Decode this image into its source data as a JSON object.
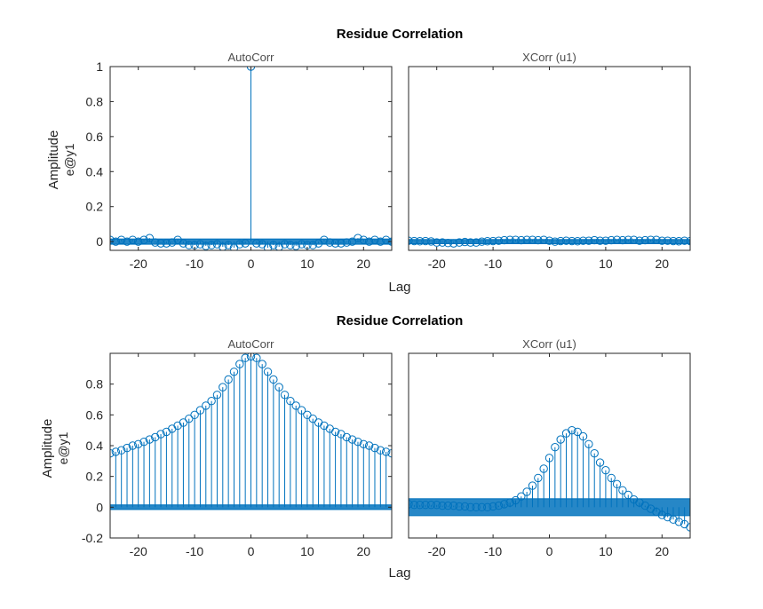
{
  "figure": {
    "rows": [
      {
        "title": "Residue Correlation",
        "ylabel": "Amplitude",
        "ylabel_sub": "e@y1",
        "xlabel": "Lag"
      },
      {
        "title": "Residue Correlation",
        "ylabel": "Amplitude",
        "ylabel_sub": "e@y1",
        "xlabel": "Lag"
      }
    ]
  },
  "colors": {
    "stem": "#0072BD",
    "band": "#0072BD",
    "axis": "#262626",
    "title": "#4d4d4d"
  },
  "chart_data": [
    {
      "type": "stem",
      "title": "AutoCorr",
      "xlim": [
        -25,
        25
      ],
      "ylim": [
        -0.05,
        1
      ],
      "xticks": [
        -20,
        -10,
        0,
        10,
        20
      ],
      "yticks": [
        0,
        0.2,
        0.4,
        0.6,
        0.8,
        1
      ],
      "yticklabels": [
        "0",
        "0.2",
        "0.4",
        "0.6",
        "0.8",
        "1"
      ],
      "confidence_band": [
        -0.015,
        0.015
      ],
      "x": [
        -25,
        -24,
        -23,
        -22,
        -21,
        -20,
        -19,
        -18,
        -17,
        -16,
        -15,
        -14,
        -13,
        -12,
        -11,
        -10,
        -9,
        -8,
        -7,
        -6,
        -5,
        -4,
        -3,
        -2,
        -1,
        0,
        1,
        2,
        3,
        4,
        5,
        6,
        7,
        8,
        9,
        10,
        11,
        12,
        13,
        14,
        15,
        16,
        17,
        18,
        19,
        20,
        21,
        22,
        23,
        24,
        25
      ],
      "y": [
        0.01,
        0.0,
        0.01,
        0.0,
        0.01,
        0.0,
        0.01,
        0.02,
        -0.005,
        -0.01,
        -0.01,
        -0.005,
        0.01,
        -0.01,
        -0.02,
        -0.02,
        -0.015,
        -0.025,
        -0.02,
        -0.015,
        -0.03,
        -0.02,
        -0.035,
        -0.015,
        -0.01,
        1.0,
        -0.01,
        -0.015,
        -0.035,
        -0.02,
        -0.03,
        -0.015,
        -0.02,
        -0.025,
        -0.015,
        -0.02,
        -0.02,
        -0.01,
        0.01,
        -0.005,
        -0.01,
        -0.01,
        -0.005,
        0.0,
        0.02,
        0.01,
        0.0,
        0.01,
        0.0,
        0.01,
        0.0
      ]
    },
    {
      "type": "stem",
      "title": "XCorr (u1)",
      "xlim": [
        -25,
        25
      ],
      "ylim": [
        -0.05,
        1
      ],
      "xticks": [
        -20,
        -10,
        0,
        10,
        20
      ],
      "yticks": [],
      "yticklabels": [],
      "confidence_band": [
        -0.012,
        0.012
      ],
      "x": [
        -25,
        -24,
        -23,
        -22,
        -21,
        -20,
        -19,
        -18,
        -17,
        -16,
        -15,
        -14,
        -13,
        -12,
        -11,
        -10,
        -9,
        -8,
        -7,
        -6,
        -5,
        -4,
        -3,
        -2,
        -1,
        0,
        1,
        2,
        3,
        4,
        5,
        6,
        7,
        8,
        9,
        10,
        11,
        12,
        13,
        14,
        15,
        16,
        17,
        18,
        19,
        20,
        21,
        22,
        23,
        24,
        25
      ],
      "y": [
        0.005,
        0.003,
        0.002,
        0.003,
        0.001,
        -0.005,
        -0.005,
        -0.008,
        -0.01,
        -0.005,
        -0.002,
        -0.005,
        -0.005,
        0.0,
        0.002,
        0.003,
        0.005,
        0.008,
        0.01,
        0.01,
        0.008,
        0.01,
        0.01,
        0.008,
        0.01,
        0.005,
        0.0,
        0.003,
        0.005,
        0.003,
        0.002,
        0.005,
        0.005,
        0.008,
        0.005,
        0.005,
        0.008,
        0.01,
        0.008,
        0.01,
        0.01,
        0.005,
        0.008,
        0.01,
        0.01,
        0.005,
        0.005,
        0.003,
        0.002,
        0.005,
        0.003
      ]
    },
    {
      "type": "stem",
      "title": "AutoCorr",
      "xlim": [
        -25,
        25
      ],
      "ylim": [
        -0.2,
        1
      ],
      "xticks": [
        -20,
        -10,
        0,
        10,
        20
      ],
      "yticks": [
        -0.2,
        0,
        0.2,
        0.4,
        0.6,
        0.8
      ],
      "yticklabels": [
        "-0.2",
        "0",
        "0.2",
        "0.4",
        "0.6",
        "0.8"
      ],
      "confidence_band": [
        -0.015,
        0.015
      ],
      "x": [
        -25,
        -24,
        -23,
        -22,
        -21,
        -20,
        -19,
        -18,
        -17,
        -16,
        -15,
        -14,
        -13,
        -12,
        -11,
        -10,
        -9,
        -8,
        -7,
        -6,
        -5,
        -4,
        -3,
        -2,
        -1,
        0,
        1,
        2,
        3,
        4,
        5,
        6,
        7,
        8,
        9,
        10,
        11,
        12,
        13,
        14,
        15,
        16,
        17,
        18,
        19,
        20,
        21,
        22,
        23,
        24,
        25
      ],
      "y": [
        0.35,
        0.36,
        0.37,
        0.385,
        0.4,
        0.41,
        0.425,
        0.44,
        0.455,
        0.475,
        0.49,
        0.51,
        0.53,
        0.55,
        0.575,
        0.6,
        0.63,
        0.66,
        0.69,
        0.73,
        0.78,
        0.83,
        0.88,
        0.93,
        0.97,
        0.98,
        0.97,
        0.93,
        0.88,
        0.83,
        0.78,
        0.73,
        0.69,
        0.66,
        0.63,
        0.6,
        0.575,
        0.55,
        0.53,
        0.51,
        0.49,
        0.475,
        0.455,
        0.44,
        0.425,
        0.41,
        0.4,
        0.385,
        0.37,
        0.36,
        0.35
      ]
    },
    {
      "type": "stem",
      "title": "XCorr (u1)",
      "xlim": [
        -25,
        25
      ],
      "ylim": [
        -0.2,
        1
      ],
      "xticks": [
        -20,
        -10,
        0,
        10,
        20
      ],
      "yticks": [],
      "yticklabels": [],
      "confidence_band": [
        -0.055,
        0.055
      ],
      "x": [
        -25,
        -24,
        -23,
        -22,
        -21,
        -20,
        -19,
        -18,
        -17,
        -16,
        -15,
        -14,
        -13,
        -12,
        -11,
        -10,
        -9,
        -8,
        -7,
        -6,
        -5,
        -4,
        -3,
        -2,
        -1,
        0,
        1,
        2,
        3,
        4,
        5,
        6,
        7,
        8,
        9,
        10,
        11,
        12,
        13,
        14,
        15,
        16,
        17,
        18,
        19,
        20,
        21,
        22,
        23,
        24,
        25
      ],
      "y": [
        0.02,
        0.015,
        0.015,
        0.015,
        0.015,
        0.015,
        0.01,
        0.01,
        0.01,
        0.005,
        0.005,
        0.0,
        0.0,
        0.0,
        0.0,
        0.005,
        0.01,
        0.02,
        0.03,
        0.045,
        0.07,
        0.1,
        0.14,
        0.19,
        0.25,
        0.32,
        0.39,
        0.44,
        0.48,
        0.5,
        0.49,
        0.46,
        0.41,
        0.35,
        0.29,
        0.24,
        0.19,
        0.15,
        0.11,
        0.08,
        0.05,
        0.03,
        0.01,
        -0.01,
        -0.03,
        -0.05,
        -0.065,
        -0.08,
        -0.095,
        -0.11,
        -0.13
      ]
    }
  ]
}
